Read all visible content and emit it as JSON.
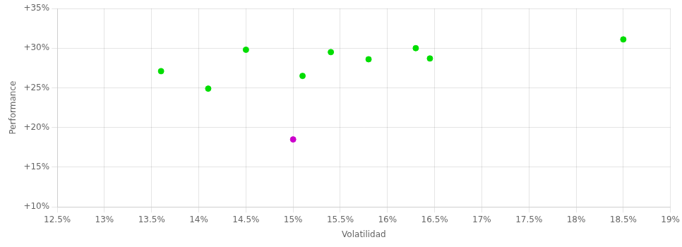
{
  "chart_data": {
    "type": "scatter",
    "xlabel": "Volatilidad",
    "ylabel": "Performance",
    "xlim": [
      0.125,
      0.19
    ],
    "ylim": [
      0.1,
      0.35
    ],
    "xticks": [
      {
        "value": 0.125,
        "label": "12.5%"
      },
      {
        "value": 0.13,
        "label": "13%"
      },
      {
        "value": 0.135,
        "label": "13.5%"
      },
      {
        "value": 0.14,
        "label": "14%"
      },
      {
        "value": 0.145,
        "label": "14.5%"
      },
      {
        "value": 0.15,
        "label": "15%"
      },
      {
        "value": 0.155,
        "label": "15.5%"
      },
      {
        "value": 0.16,
        "label": "16%"
      },
      {
        "value": 0.165,
        "label": "16.5%"
      },
      {
        "value": 0.17,
        "label": "17%"
      },
      {
        "value": 0.175,
        "label": "17.5%"
      },
      {
        "value": 0.18,
        "label": "18%"
      },
      {
        "value": 0.185,
        "label": "18.5%"
      },
      {
        "value": 0.19,
        "label": "19%"
      }
    ],
    "yticks": [
      {
        "value": 0.1,
        "label": "+10%"
      },
      {
        "value": 0.15,
        "label": "+15%"
      },
      {
        "value": 0.2,
        "label": "+20%"
      },
      {
        "value": 0.25,
        "label": "+25%"
      },
      {
        "value": 0.3,
        "label": "+30%"
      },
      {
        "value": 0.35,
        "label": "+35%"
      }
    ],
    "grid": true,
    "series": [
      {
        "color": "#00dd00",
        "marker": "circle",
        "x": [
          0.136,
          0.141,
          0.145,
          0.151,
          0.154,
          0.158,
          0.163,
          0.1645,
          0.185
        ],
        "values": [
          0.271,
          0.249,
          0.298,
          0.265,
          0.295,
          0.286,
          0.3,
          0.287,
          0.311
        ]
      },
      {
        "color": "#cc00cc",
        "marker": "circle",
        "x": [
          0.15
        ],
        "values": [
          0.185
        ]
      }
    ]
  }
}
